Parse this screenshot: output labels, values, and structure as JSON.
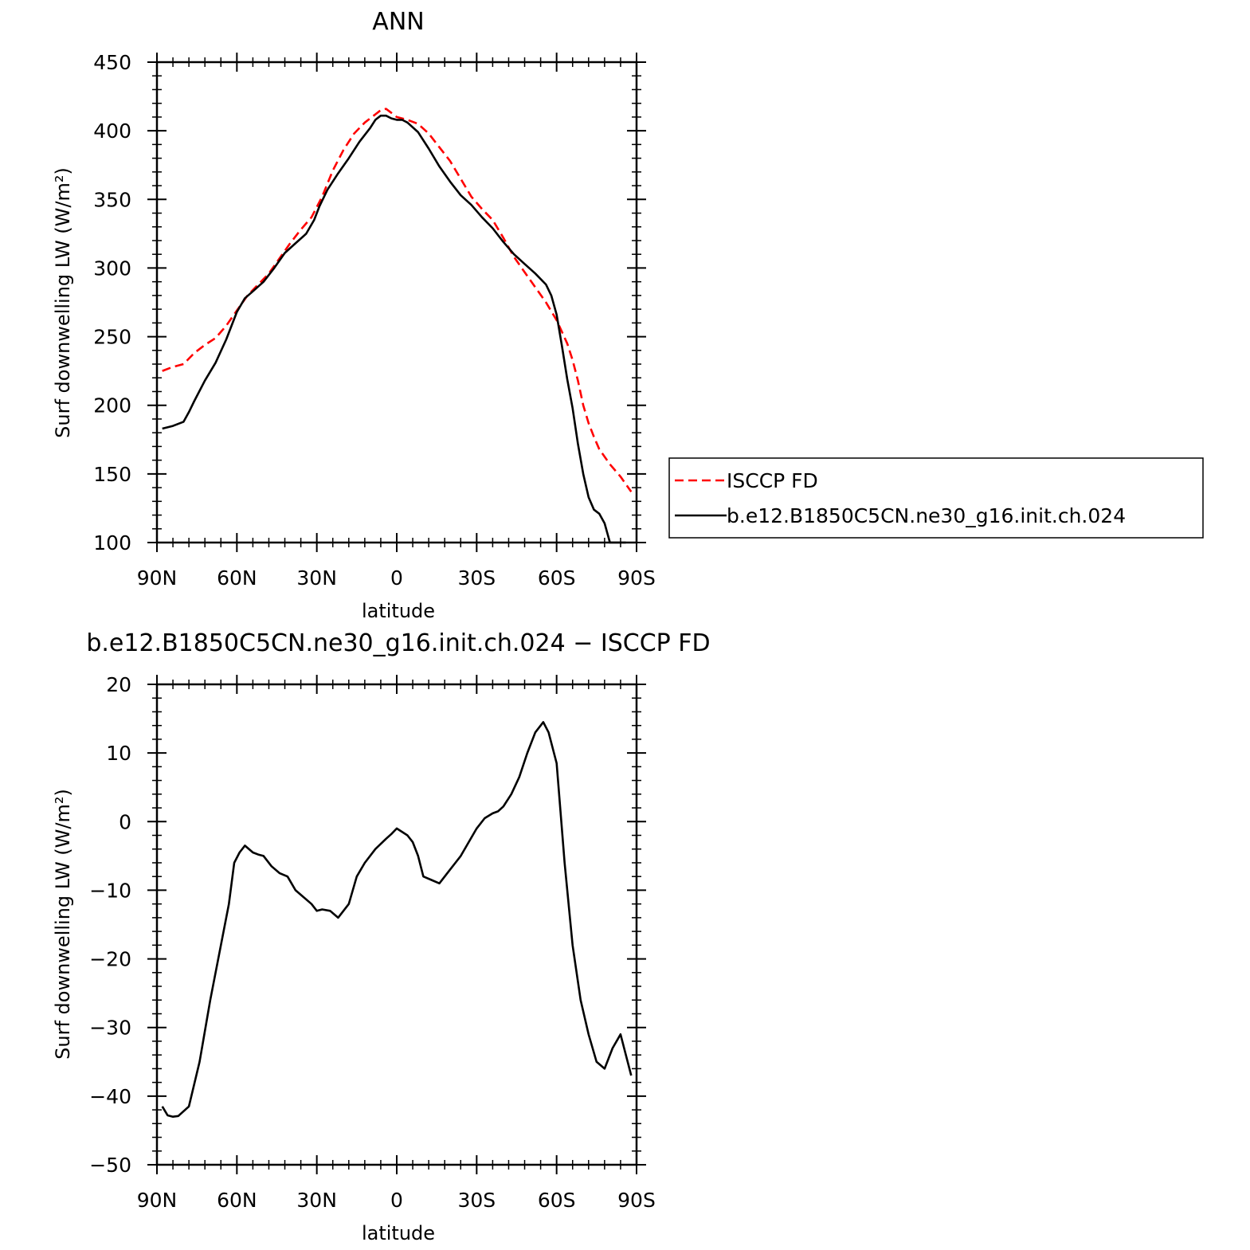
{
  "chart_data": [
    {
      "type": "line",
      "title": "ANN",
      "xlabel": "latitude",
      "ylabel": "Surf downwelling LW (W/m²)",
      "ylim": [
        100,
        450
      ],
      "yticks": [
        100,
        150,
        200,
        250,
        300,
        350,
        400,
        450
      ],
      "xlim": [
        90,
        -90
      ],
      "xticks": [
        90,
        60,
        30,
        0,
        -30,
        -60,
        -90
      ],
      "xtick_labels": [
        "90N",
        "60N",
        "30N",
        "0",
        "30S",
        "60S",
        "90S"
      ],
      "legend_position": "right",
      "series": [
        {
          "name": "ISCCP FD",
          "color": "#ff0000",
          "style": "dashed",
          "x": [
            88,
            84,
            80,
            76,
            72,
            68,
            64,
            60,
            56,
            52,
            48,
            44,
            40,
            36,
            32,
            28,
            24,
            20,
            16,
            12,
            8,
            6,
            4,
            2,
            0,
            -4,
            -8,
            -12,
            -16,
            -20,
            -24,
            -28,
            -32,
            -36,
            -40,
            -44,
            -48,
            -52,
            -56,
            -60,
            -64,
            -66,
            -68,
            -70,
            -72,
            -74,
            -76,
            -80,
            -84,
            -88
          ],
          "values": [
            225,
            228,
            230,
            238,
            244,
            249,
            258,
            269,
            280,
            288,
            296,
            307,
            318,
            328,
            337,
            352,
            371,
            386,
            398,
            406,
            412,
            415,
            416,
            413,
            410,
            408,
            405,
            398,
            388,
            378,
            365,
            352,
            343,
            335,
            322,
            308,
            297,
            286,
            275,
            262,
            245,
            233,
            218,
            200,
            187,
            177,
            168,
            157,
            148,
            137
          ]
        },
        {
          "name": "b.e12.B1850C5CN.ne30_g16.init.ch.024",
          "color": "#000000",
          "style": "solid",
          "x": [
            88,
            84,
            80,
            78,
            76,
            72,
            68,
            64,
            60,
            57,
            54,
            50,
            46,
            42,
            38,
            34,
            31,
            29,
            26,
            22,
            18,
            14,
            10,
            8,
            6,
            4,
            2,
            0,
            -2,
            -4,
            -8,
            -12,
            -16,
            -20,
            -24,
            -28,
            -32,
            -36,
            -40,
            -44,
            -48,
            -52,
            -56,
            -58,
            -60,
            -62,
            -64,
            -66,
            -68,
            -70,
            -72,
            -74,
            -76,
            -78,
            -80,
            -82,
            -84,
            -86
          ],
          "values": [
            183,
            185,
            188,
            195,
            203,
            218,
            231,
            248,
            268,
            278,
            283,
            290,
            300,
            311,
            318,
            325,
            335,
            345,
            357,
            369,
            380,
            392,
            402,
            408,
            411,
            411,
            409,
            408,
            408,
            406,
            399,
            387,
            374,
            363,
            353,
            346,
            337,
            329,
            319,
            310,
            303,
            296,
            288,
            280,
            266,
            243,
            219,
            198,
            172,
            150,
            133,
            124,
            121,
            114,
            100,
            96,
            100,
            100
          ]
        }
      ]
    },
    {
      "type": "line",
      "title": "b.e12.B1850C5CN.ne30_g16.init.ch.024 − ISCCP FD",
      "xlabel": "latitude",
      "ylabel": "Surf downwelling LW (W/m²)",
      "ylim": [
        -50,
        20
      ],
      "yticks": [
        -50,
        -40,
        -30,
        -20,
        -10,
        0,
        10,
        20
      ],
      "ytick_labels": [
        "−50",
        "−40",
        "−30",
        "−20",
        "−10",
        "0",
        "10",
        "20"
      ],
      "xlim": [
        90,
        -90
      ],
      "xticks": [
        90,
        60,
        30,
        0,
        -30,
        -60,
        -90
      ],
      "xtick_labels": [
        "90N",
        "60N",
        "30N",
        "0",
        "30S",
        "60S",
        "90S"
      ],
      "series": [
        {
          "color": "#000000",
          "style": "solid",
          "x": [
            88,
            86,
            84,
            82,
            78,
            74,
            70,
            66,
            63,
            61,
            59,
            57,
            54,
            52,
            50,
            47,
            44,
            41,
            38,
            35,
            32,
            30,
            28,
            25,
            22,
            20,
            18,
            15,
            12,
            8,
            4,
            2,
            0,
            -4,
            -6,
            -8,
            -10,
            -13,
            -16,
            -20,
            -22,
            -24,
            -27,
            -30,
            -33,
            -36,
            -38,
            -40,
            -43,
            -46,
            -49,
            -52,
            -55,
            -57,
            -60,
            -63,
            -66,
            -69,
            -72,
            -75,
            -78,
            -81,
            -84,
            -86,
            -88
          ],
          "values": [
            -41.5,
            -42.8,
            -43,
            -42.9,
            -41.5,
            -35,
            -26,
            -18,
            -12,
            -6,
            -4.5,
            -3.5,
            -4.5,
            -4.8,
            -5,
            -6.5,
            -7.5,
            -8,
            -10,
            -11,
            -12,
            -13,
            -12.8,
            -13,
            -14,
            -13,
            -12,
            -8,
            -6,
            -4,
            -2.5,
            -1.8,
            -1,
            -2,
            -3,
            -5,
            -8,
            -8.5,
            -9,
            -7,
            -6,
            -5,
            -3,
            -1,
            0.5,
            1.2,
            1.5,
            2.2,
            4,
            6.5,
            10,
            13,
            14.5,
            13,
            8.5,
            -6,
            -18,
            -26,
            -31,
            -35,
            -36,
            -33,
            -31,
            -34,
            -37
          ]
        }
      ]
    }
  ]
}
